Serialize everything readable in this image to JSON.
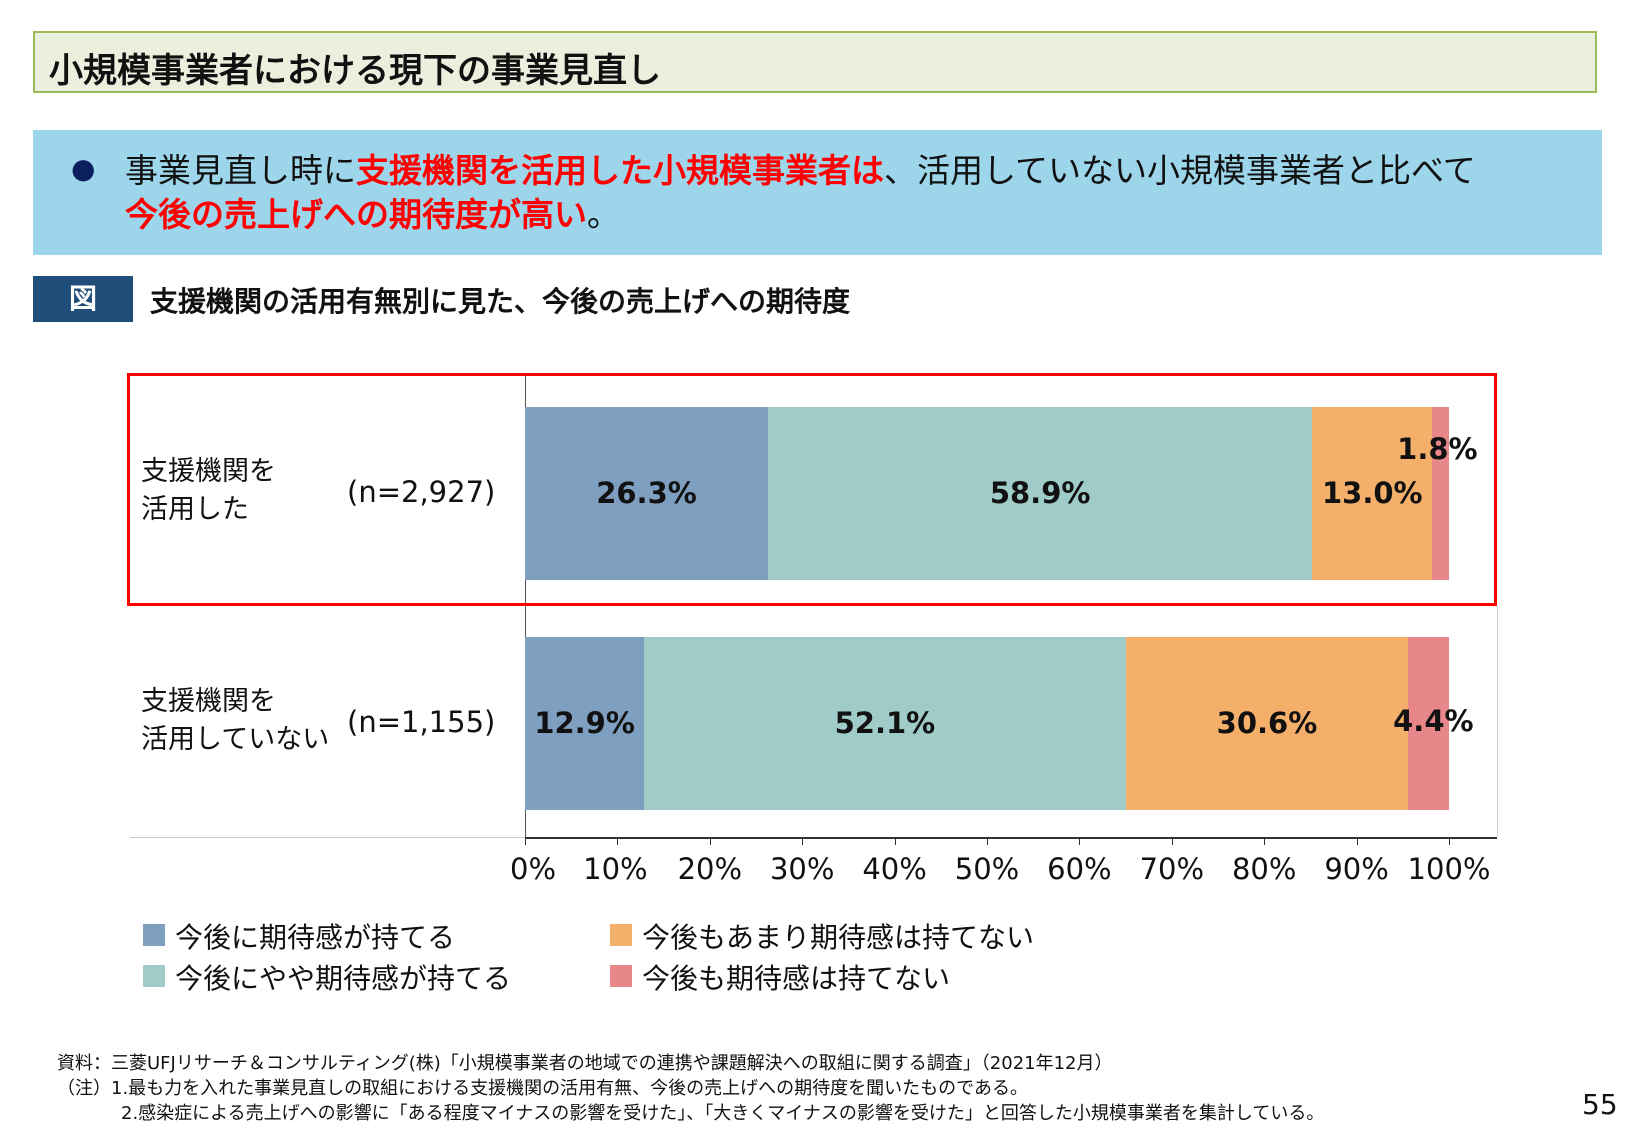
{
  "header": {
    "title": "小規模事業者における現下の事業見直し"
  },
  "summary": {
    "bullet": "●",
    "line1_plain1": "事業見直し時に",
    "line1_red": "支援機関を活用した小規模事業者は",
    "line1_plain2": "、活用していない小規模事業者と比べて",
    "line2_red": "今後の売上げへの期待度が高い",
    "line2_plain": "。"
  },
  "figure": {
    "tag": "図",
    "title": "支援機関の活用有無別に見た、今後の売上げへの期待度"
  },
  "chart_data": {
    "type": "bar",
    "orientation": "horizontal-stacked-100",
    "categories": [
      {
        "label_line1": "支援機関を",
        "label_line2": "活用した",
        "n": "(n=2,927)",
        "highlighted": true
      },
      {
        "label_line1": "支援機関を",
        "label_line2": "活用していない",
        "n": "(n=1,155)",
        "highlighted": false
      }
    ],
    "series": [
      {
        "name": "今後に期待感が持てる",
        "values": [
          26.3,
          12.9
        ],
        "labels": [
          "26.3%",
          "12.9%"
        ],
        "color": "#7f9fc0"
      },
      {
        "name": "今後にやや期待感が持てる",
        "values": [
          58.9,
          52.1
        ],
        "labels": [
          "58.9%",
          "52.1%"
        ],
        "color": "#9fccc8"
      },
      {
        "name": "今後もあまり期待感は持てない",
        "values": [
          13.0,
          30.6
        ],
        "labels": [
          "13.0%",
          "30.6%"
        ],
        "color": "#f4b06b"
      },
      {
        "name": "今後も期待感は持てない",
        "values": [
          1.8,
          4.4
        ],
        "labels": [
          "1.8%",
          "4.4%"
        ],
        "color": "#e8878a"
      }
    ],
    "xlim": [
      0,
      100
    ],
    "xticks": [
      "0%",
      "10%",
      "20%",
      "30%",
      "40%",
      "50%",
      "60%",
      "70%",
      "80%",
      "90%",
      "100%"
    ],
    "legend_placement": "bottom-left",
    "highlight_color": "#ff0000"
  },
  "footer": {
    "source": "資料：三菱UFJリサーチ＆コンサルティング(株)「小規模事業者の地域での連携や課題解決への取組に関する調査」（2021年12月）",
    "note1": "（注）1.最も力を入れた事業見直しの取組における支援機関の活用有無、今後の売上げへの期待度を聞いたものである。",
    "note2": "2.感染症による売上げへの影響に「ある程度マイナスの影響を受けた」、「大きくマイナスの影響を受けた」と回答した小規模事業者を集計している。",
    "page": "55"
  }
}
